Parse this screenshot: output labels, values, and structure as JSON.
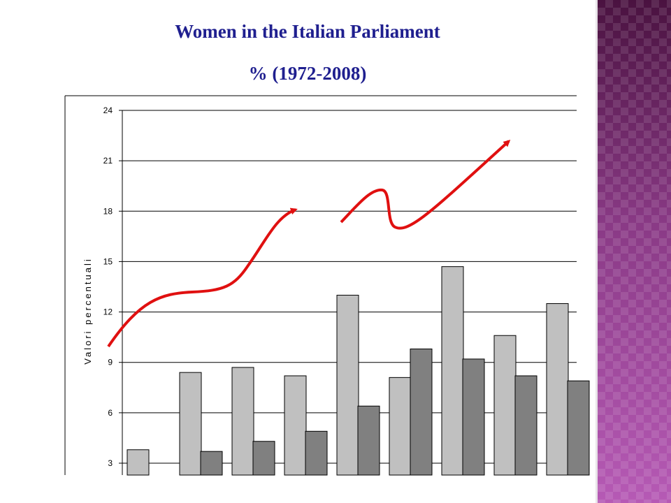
{
  "slide": {
    "title": "Women in the Italian Parliament",
    "subtitle": "% (1972-2008)"
  },
  "colors": {
    "title": "#1f1f8f",
    "light_bar": "#c0c0c0",
    "dark_bar": "#808080",
    "trend_arrows": "#e01010",
    "side_panel": "#7a2f78"
  },
  "chart_data": {
    "type": "bar",
    "ylabel": "Valori percentuali",
    "xlabel": "",
    "ylim": [
      1.5,
      24
    ],
    "yticks": [
      3,
      6,
      9,
      12,
      15,
      18,
      21,
      24
    ],
    "grid": true,
    "series": [
      {
        "values": [
          3.8,
          8.4,
          8.7,
          8.2,
          13.0,
          8.1,
          14.7,
          10.6,
          12.5
        ]
      },
      {
        "values": [
          null,
          3.7,
          4.3,
          4.9,
          6.4,
          9.8,
          9.2,
          8.2,
          7.9
        ]
      }
    ]
  }
}
